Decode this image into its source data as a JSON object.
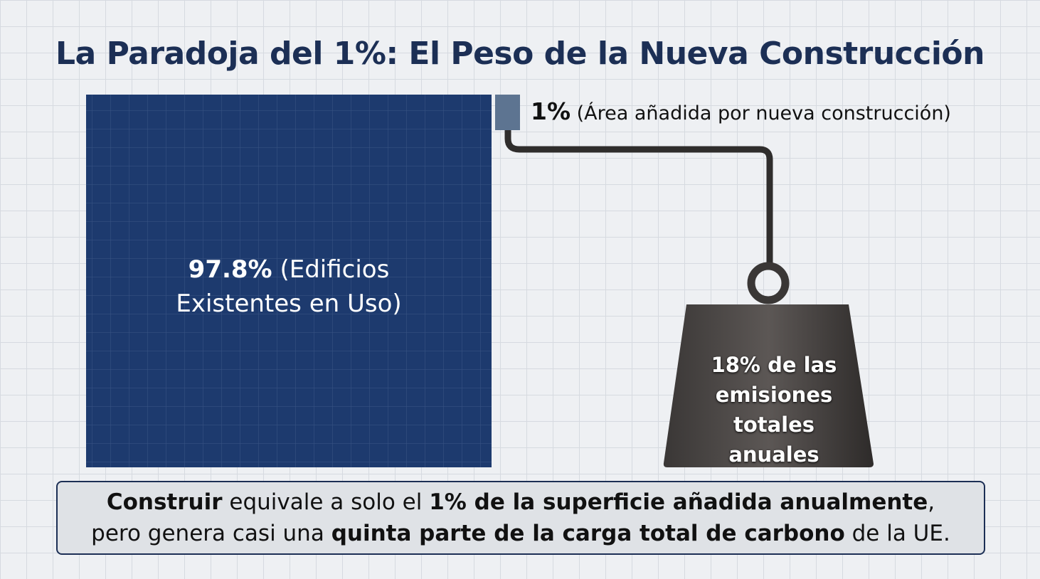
{
  "title": "La Paradoja del 1%: El Peso de la Nueva Construcción",
  "existing": {
    "value": "97.8%",
    "label": "(Edificios Existentes en Uso)"
  },
  "new": {
    "value": "1%",
    "label": "(Área añadida por nueva construcción)"
  },
  "weight": {
    "value": "18%",
    "label": "de las emisiones totales anuales"
  },
  "caption": [
    {
      "text": "Construir",
      "bold": true
    },
    {
      "text": " equivale a solo el ",
      "bold": false
    },
    {
      "text": "1% de la superficie añadida anualmente",
      "bold": true
    },
    {
      "text": ", pero genera casi una ",
      "bold": false
    },
    {
      "text": "quinta parte de la carga total de carbono",
      "bold": true
    },
    {
      "text": " de la UE.",
      "bold": false
    }
  ]
}
